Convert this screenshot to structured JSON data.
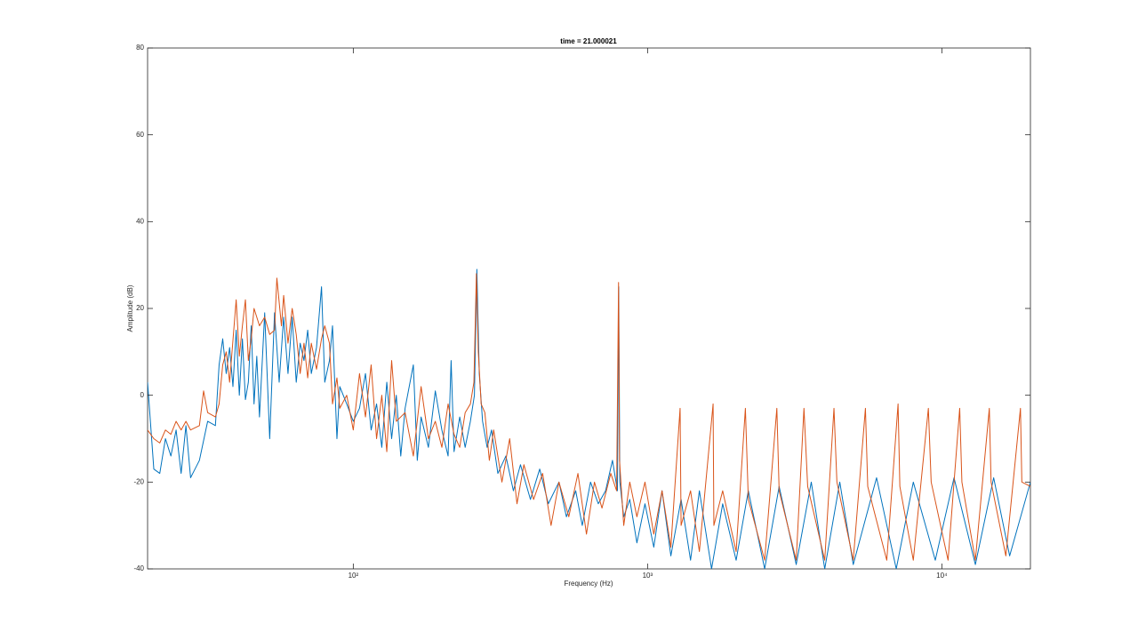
{
  "chart_data": {
    "type": "line",
    "title": "time = 21.000021",
    "xlabel": "Frequency (Hz)",
    "ylabel": "Amplitude (dB)",
    "xscale": "log",
    "xlim": [
      20,
      20000
    ],
    "ylim": [
      -40,
      80
    ],
    "xticks": [
      {
        "value": 100,
        "label": "10²"
      },
      {
        "value": 1000,
        "label": "10³"
      },
      {
        "value": 10000,
        "label": "10⁴"
      }
    ],
    "yticks": [
      -40,
      -20,
      0,
      20,
      40,
      60,
      80
    ],
    "series": [
      {
        "color": "#0072BD",
        "x": [
          20,
          21,
          22,
          23,
          24,
          25,
          26,
          27,
          28,
          30,
          32,
          34,
          35,
          36,
          37,
          38,
          39,
          40,
          41,
          42,
          43,
          44,
          45,
          46,
          47,
          48,
          50,
          52,
          54,
          56,
          58,
          60,
          62,
          64,
          66,
          68,
          70,
          72,
          75,
          78,
          80,
          83,
          85,
          88,
          90,
          95,
          100,
          105,
          110,
          115,
          120,
          125,
          130,
          135,
          140,
          145,
          150,
          160,
          165,
          170,
          180,
          190,
          200,
          210,
          215,
          220,
          230,
          240,
          250,
          258,
          263,
          268,
          275,
          285,
          295,
          310,
          330,
          350,
          370,
          400,
          430,
          460,
          500,
          530,
          570,
          600,
          640,
          680,
          720,
          760,
          790,
          798,
          805,
          830,
          870,
          920,
          980,
          1050,
          1120,
          1200,
          1300,
          1400,
          1500,
          1650,
          1800,
          2000,
          2200,
          2500,
          2800,
          3200,
          3600,
          4000,
          4500,
          5000,
          6000,
          7000,
          8000,
          9500,
          11000,
          13000,
          15000,
          17000,
          20000
        ],
        "values": [
          3,
          -17,
          -18,
          -10,
          -14,
          -8,
          -18,
          -7,
          -19,
          -15,
          -6,
          -7,
          7,
          13,
          5,
          11,
          2,
          15,
          0,
          13,
          -1,
          3,
          16,
          -2,
          9,
          -5,
          19,
          -10,
          19,
          3,
          18,
          5,
          18,
          3,
          12,
          8,
          15,
          5,
          11,
          25,
          3,
          8,
          16,
          -10,
          2,
          -2,
          -6,
          -3,
          5,
          -8,
          -2,
          -12,
          3,
          -10,
          0,
          -14,
          -3,
          7,
          -15,
          -5,
          -12,
          1,
          -8,
          -14,
          8,
          -13,
          -5,
          -12,
          -6,
          0,
          29,
          5,
          -6,
          -12,
          -8,
          -18,
          -14,
          -22,
          -16,
          -24,
          -17,
          -25,
          -20,
          -28,
          -22,
          -30,
          -20,
          -25,
          -22,
          -15,
          -22,
          25,
          -20,
          -28,
          -24,
          -34,
          -25,
          -35,
          -22,
          -37,
          -24,
          -38,
          -22,
          -40,
          -25,
          -38,
          -22,
          -40,
          -21,
          -39,
          -20,
          -40,
          -20,
          -39,
          -19,
          -40,
          -20,
          -38,
          -19,
          -39,
          -19,
          -37,
          -20
        ]
      },
      {
        "color": "#D95319",
        "x": [
          20,
          21,
          22,
          23,
          24,
          25,
          26,
          27,
          28,
          30,
          31,
          32,
          34,
          35,
          36,
          37,
          38,
          40,
          41,
          42,
          43,
          44,
          45,
          46,
          48,
          50,
          52,
          54,
          55,
          57,
          58,
          60,
          62,
          64,
          66,
          68,
          70,
          72,
          75,
          78,
          80,
          83,
          85,
          88,
          90,
          95,
          100,
          105,
          110,
          115,
          120,
          125,
          130,
          135,
          140,
          150,
          160,
          170,
          180,
          190,
          200,
          210,
          220,
          230,
          240,
          250,
          257,
          262,
          266,
          272,
          280,
          290,
          300,
          320,
          340,
          360,
          380,
          410,
          440,
          470,
          500,
          540,
          580,
          620,
          660,
          700,
          750,
          785,
          797,
          803,
          830,
          870,
          920,
          980,
          1050,
          1120,
          1200,
          1290,
          1300,
          1400,
          1500,
          1670,
          1680,
          1800,
          2000,
          2150,
          2200,
          2500,
          2750,
          2800,
          3200,
          3400,
          3500,
          4000,
          4300,
          4400,
          5000,
          5500,
          5600,
          6500,
          7100,
          7200,
          8000,
          9000,
          9200,
          10500,
          11500,
          11700,
          13000,
          14500,
          14700,
          16500,
          18500,
          18700,
          20000
        ],
        "values": [
          -8,
          -10,
          -11,
          -8,
          -9,
          -6,
          -8,
          -6,
          -8,
          -7,
          1,
          -4,
          -5,
          -2,
          7,
          10,
          3,
          22,
          9,
          16,
          22,
          8,
          13,
          20,
          16,
          18,
          14,
          15,
          27,
          16,
          23,
          12,
          20,
          14,
          5,
          12,
          4,
          12,
          6,
          13,
          16,
          12,
          -2,
          4,
          -3,
          0,
          -8,
          5,
          -5,
          7,
          -10,
          0,
          -13,
          8,
          -6,
          -4,
          -14,
          2,
          -10,
          -6,
          -12,
          -2,
          -9,
          -12,
          -4,
          -2,
          3,
          28,
          10,
          -2,
          -4,
          -15,
          -8,
          -20,
          -10,
          -25,
          -16,
          -24,
          -18,
          -30,
          -20,
          -28,
          -18,
          -32,
          -20,
          -26,
          -18,
          -22,
          26,
          -15,
          -30,
          -20,
          -28,
          -20,
          -32,
          -22,
          -35,
          -3,
          -30,
          -22,
          -36,
          -2,
          -30,
          -22,
          -36,
          -3,
          -24,
          -38,
          -3,
          -22,
          -38,
          -3,
          -21,
          -38,
          -3,
          -20,
          -38,
          -3,
          -21,
          -38,
          -2,
          -21,
          -38,
          -3,
          -20,
          -38,
          -3,
          -20,
          -38,
          -3,
          -20,
          -37,
          -3,
          -20,
          -21
        ]
      }
    ]
  }
}
